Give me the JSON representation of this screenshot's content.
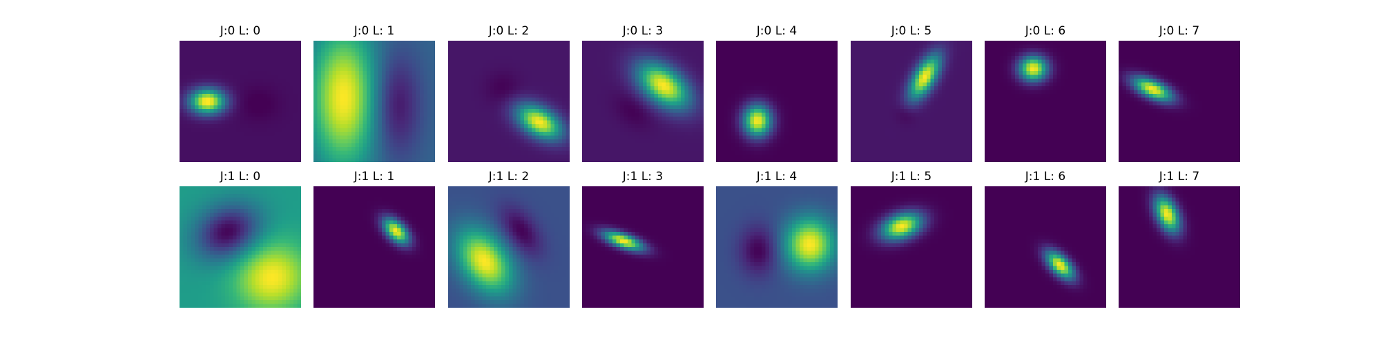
{
  "chart_data": {
    "type": "heatmap",
    "colormap": "viridis",
    "colormap_stops": [
      "#440154",
      "#482878",
      "#3e4989",
      "#31688e",
      "#26828e",
      "#1f9e89",
      "#35b779",
      "#6ece58",
      "#b5de2b",
      "#fde725"
    ],
    "layout": "2 rows x 8 columns",
    "axes": "off",
    "panels": [
      {
        "title": "J:0 L: 0",
        "background": 0.04,
        "blobs": [
          {
            "cx": 0.23,
            "cy": 0.5,
            "sx": 0.1,
            "sy": 0.07,
            "angle": 0,
            "a": 1.0
          },
          {
            "cx": 0.65,
            "cy": 0.52,
            "sx": 0.12,
            "sy": 0.1,
            "angle": 0,
            "a": -0.05
          }
        ]
      },
      {
        "title": "J:0 L: 1",
        "background": 0.32,
        "blobs": [
          {
            "cx": 0.25,
            "cy": 0.47,
            "sx": 0.19,
            "sy": 0.4,
            "angle": 0,
            "a": 0.68
          },
          {
            "cx": 0.68,
            "cy": 0.53,
            "sx": 0.14,
            "sy": 0.3,
            "angle": 0,
            "a": -0.28
          }
        ]
      },
      {
        "title": "J:0 L: 2",
        "background": 0.06,
        "blobs": [
          {
            "cx": 0.75,
            "cy": 0.67,
            "sx": 0.14,
            "sy": 0.08,
            "angle": 30,
            "a": 0.94
          },
          {
            "cx": 0.45,
            "cy": 0.4,
            "sx": 0.1,
            "sy": 0.1,
            "angle": 0,
            "a": -0.06
          }
        ]
      },
      {
        "title": "J:0 L: 3",
        "background": 0.06,
        "blobs": [
          {
            "cx": 0.67,
            "cy": 0.37,
            "sx": 0.17,
            "sy": 0.1,
            "angle": 38,
            "a": 0.94
          },
          {
            "cx": 0.42,
            "cy": 0.58,
            "sx": 0.12,
            "sy": 0.08,
            "angle": 38,
            "a": -0.06
          }
        ]
      },
      {
        "title": "J:0 L: 4",
        "background": 0.0,
        "blobs": [
          {
            "cx": 0.34,
            "cy": 0.66,
            "sx": 0.08,
            "sy": 0.09,
            "angle": 0,
            "a": 1.0
          }
        ]
      },
      {
        "title": "J:0 L: 5",
        "background": 0.06,
        "blobs": [
          {
            "cx": 0.61,
            "cy": 0.3,
            "sx": 0.14,
            "sy": 0.06,
            "angle": -60,
            "a": 0.94
          },
          {
            "cx": 0.45,
            "cy": 0.6,
            "sx": 0.06,
            "sy": 0.06,
            "angle": 0,
            "a": -0.06
          }
        ]
      },
      {
        "title": "J:0 L: 6",
        "background": 0.0,
        "blobs": [
          {
            "cx": 0.4,
            "cy": 0.23,
            "sx": 0.08,
            "sy": 0.07,
            "angle": 0,
            "a": 1.0
          }
        ]
      },
      {
        "title": "J:0 L: 7",
        "background": 0.0,
        "blobs": [
          {
            "cx": 0.28,
            "cy": 0.4,
            "sx": 0.12,
            "sy": 0.05,
            "angle": 25,
            "a": 1.0
          }
        ]
      },
      {
        "title": "J:1 L: 0",
        "background": 0.55,
        "blobs": [
          {
            "cx": 0.76,
            "cy": 0.75,
            "sx": 0.21,
            "sy": 0.2,
            "angle": -20,
            "a": 0.45
          },
          {
            "cx": 0.4,
            "cy": 0.38,
            "sx": 0.19,
            "sy": 0.15,
            "angle": -25,
            "a": -0.55
          }
        ]
      },
      {
        "title": "J:1 L: 1",
        "background": 0.0,
        "blobs": [
          {
            "cx": 0.68,
            "cy": 0.37,
            "sx": 0.09,
            "sy": 0.05,
            "angle": 45,
            "a": 1.0
          }
        ]
      },
      {
        "title": "J:1 L: 2",
        "background": 0.25,
        "blobs": [
          {
            "cx": 0.3,
            "cy": 0.62,
            "sx": 0.2,
            "sy": 0.13,
            "angle": 55,
            "a": 0.75
          },
          {
            "cx": 0.6,
            "cy": 0.37,
            "sx": 0.16,
            "sy": 0.09,
            "angle": 55,
            "a": -0.25
          }
        ]
      },
      {
        "title": "J:1 L: 3",
        "background": 0.0,
        "blobs": [
          {
            "cx": 0.34,
            "cy": 0.45,
            "sx": 0.12,
            "sy": 0.04,
            "angle": 20,
            "a": 1.0
          }
        ]
      },
      {
        "title": "J:1 L: 4",
        "background": 0.25,
        "blobs": [
          {
            "cx": 0.77,
            "cy": 0.48,
            "sx": 0.14,
            "sy": 0.15,
            "angle": 0,
            "a": 0.75
          },
          {
            "cx": 0.35,
            "cy": 0.53,
            "sx": 0.11,
            "sy": 0.14,
            "angle": 0,
            "a": -0.25
          }
        ]
      },
      {
        "title": "J:1 L: 5",
        "background": 0.0,
        "blobs": [
          {
            "cx": 0.42,
            "cy": 0.33,
            "sx": 0.12,
            "sy": 0.07,
            "angle": -20,
            "a": 1.0
          }
        ]
      },
      {
        "title": "J:1 L: 6",
        "background": 0.0,
        "blobs": [
          {
            "cx": 0.62,
            "cy": 0.65,
            "sx": 0.1,
            "sy": 0.05,
            "angle": 45,
            "a": 1.0
          }
        ]
      },
      {
        "title": "J:1 L: 7",
        "background": 0.0,
        "blobs": [
          {
            "cx": 0.4,
            "cy": 0.23,
            "sx": 0.11,
            "sy": 0.06,
            "angle": 65,
            "a": 1.0
          }
        ]
      }
    ]
  }
}
